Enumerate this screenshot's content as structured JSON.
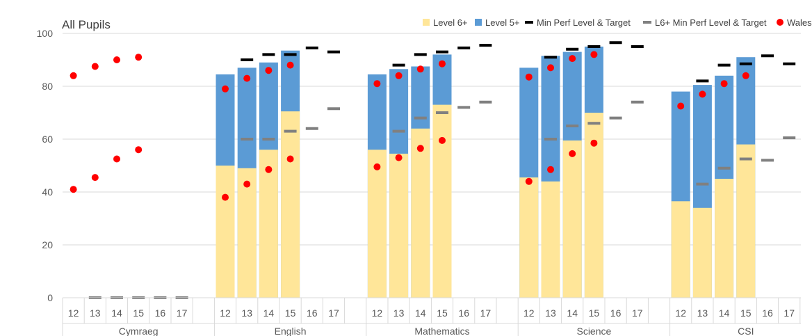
{
  "chart_data": {
    "type": "bar",
    "title": "All Pupils",
    "ylim": [
      0,
      100
    ],
    "yticks": [
      0,
      20,
      40,
      60,
      80,
      100
    ],
    "grid": true,
    "legend_position": "top-right",
    "groups": [
      {
        "name": "Cymraeg",
        "years": [
          "12",
          "13",
          "14",
          "15",
          "16",
          "17"
        ],
        "level6": [
          null,
          null,
          null,
          null,
          null,
          null
        ],
        "level5": [
          null,
          null,
          null,
          null,
          null,
          null
        ],
        "min_perf": [
          null,
          null,
          null,
          null,
          null,
          null
        ],
        "l6_min_perf": [
          null,
          0,
          0,
          0,
          0,
          0
        ],
        "wales_l5": [
          84,
          87.5,
          90,
          91,
          null,
          null
        ],
        "wales_l6": [
          41,
          45.5,
          52.5,
          56,
          null,
          null
        ]
      },
      {
        "name": "English",
        "years": [
          "12",
          "13",
          "14",
          "15",
          "16",
          "17"
        ],
        "level6": [
          50,
          49,
          56,
          70.5,
          null,
          null
        ],
        "level5": [
          84.5,
          87,
          89,
          93.5,
          null,
          null
        ],
        "min_perf": [
          null,
          90,
          92,
          92,
          94.5,
          93
        ],
        "l6_min_perf": [
          null,
          60,
          60,
          63,
          64,
          71.5
        ],
        "wales_l5": [
          79,
          83,
          86,
          88,
          null,
          null
        ],
        "wales_l6": [
          38,
          43,
          48.5,
          52.5,
          null,
          null
        ]
      },
      {
        "name": "Mathematics",
        "years": [
          "12",
          "13",
          "14",
          "15",
          "16",
          "17"
        ],
        "level6": [
          56,
          54.5,
          64,
          73,
          null,
          null
        ],
        "level5": [
          84.5,
          86.5,
          87.5,
          92,
          null,
          null
        ],
        "min_perf": [
          null,
          88,
          92,
          93,
          94.5,
          95.5
        ],
        "l6_min_perf": [
          null,
          63,
          68,
          70,
          72,
          74
        ],
        "wales_l5": [
          81,
          84,
          86.5,
          88.5,
          null,
          null
        ],
        "wales_l6": [
          49.5,
          53,
          56.5,
          59.5,
          null,
          null
        ]
      },
      {
        "name": "Science",
        "years": [
          "12",
          "13",
          "14",
          "15",
          "16",
          "17"
        ],
        "level6": [
          45.5,
          44,
          59.5,
          70,
          null,
          null
        ],
        "level5": [
          87,
          91.5,
          93,
          95,
          null,
          null
        ],
        "min_perf": [
          null,
          91,
          94,
          95,
          96.5,
          95
        ],
        "l6_min_perf": [
          null,
          60,
          65,
          66,
          68,
          74
        ],
        "wales_l5": [
          83.5,
          87,
          90.5,
          92,
          null,
          null
        ],
        "wales_l6": [
          44,
          48.5,
          54.5,
          58.5,
          null,
          null
        ]
      },
      {
        "name": "CSI",
        "years": [
          "12",
          "13",
          "14",
          "15",
          "16",
          "17"
        ],
        "level6": [
          36.5,
          34,
          45,
          58,
          null,
          null
        ],
        "level5": [
          78,
          80.5,
          84,
          91,
          null,
          null
        ],
        "min_perf": [
          null,
          82,
          88,
          88.5,
          91.5,
          88.5
        ],
        "l6_min_perf": [
          null,
          43,
          49,
          52.5,
          52,
          60.5
        ],
        "wales_l5": [
          72.5,
          77,
          81,
          84,
          null,
          null
        ],
        "wales_l6": [
          null,
          null,
          null,
          null,
          null,
          null
        ]
      }
    ],
    "legend": [
      {
        "label": "Level 6+",
        "kind": "bar",
        "color": "#FFE699"
      },
      {
        "label": "Level 5+",
        "kind": "bar",
        "color": "#5B9BD5"
      },
      {
        "label": "Min Perf Level & Target",
        "kind": "dash",
        "color": "#000000"
      },
      {
        "label": "L6+ Min Perf Level & Target",
        "kind": "dash",
        "color": "#808080"
      },
      {
        "label": "Wales",
        "kind": "dot",
        "color": "#FF0000"
      }
    ],
    "colors": {
      "level6": "#FFE699",
      "level5": "#5B9BD5",
      "min_perf": "#000000",
      "l6_min_perf": "#808080",
      "wales": "#FF0000",
      "grid": "#D9D9D9",
      "axis_text": "#595959"
    }
  }
}
